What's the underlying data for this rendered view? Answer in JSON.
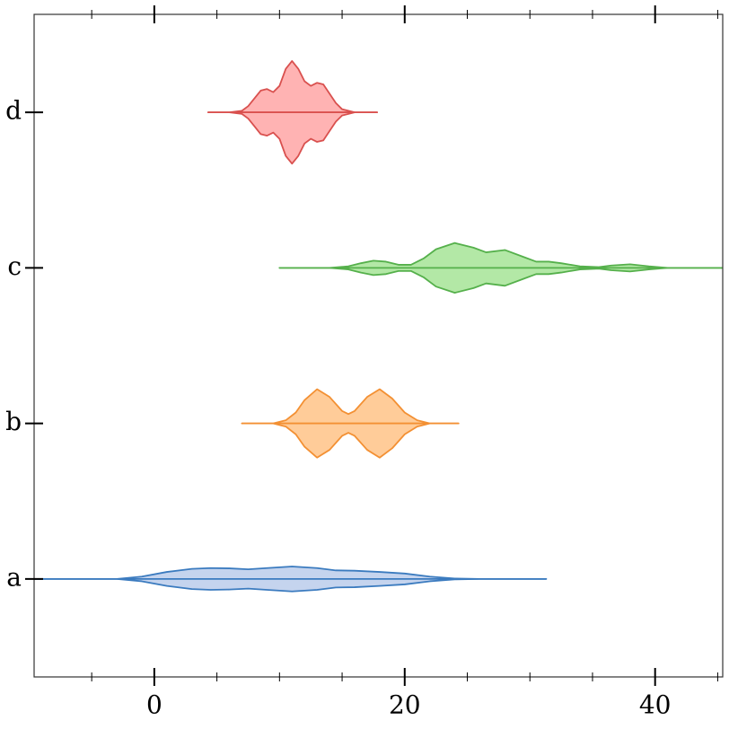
{
  "chart_data": {
    "type": "violin",
    "orientation": "horizontal",
    "categories": [
      "a",
      "b",
      "c",
      "d"
    ],
    "xlim": [
      -9.6,
      45.4
    ],
    "xticks": [
      0,
      20,
      40
    ],
    "xminorticks": [
      -5,
      5,
      10,
      15,
      25,
      30,
      35,
      45
    ],
    "ylim": [
      -0.63,
      3.63
    ],
    "series": [
      {
        "color": "#3b7bbf",
        "fill": "#c5d4ee",
        "x": [
          -9.6,
          -3,
          -1,
          1,
          3,
          4.5,
          6,
          7.5,
          9,
          11,
          13,
          14.5,
          16,
          18,
          20,
          22,
          24,
          26,
          31.3
        ],
        "values": [
          0,
          0,
          0.015,
          0.045,
          0.065,
          0.07,
          0.068,
          0.062,
          0.07,
          0.08,
          0.07,
          0.055,
          0.053,
          0.045,
          0.035,
          0.015,
          0.003,
          0,
          0
        ]
      },
      {
        "color": "#f39033",
        "fill": "#ffcc99",
        "x": [
          7,
          9.5,
          10.5,
          11.3,
          12,
          13,
          14,
          15,
          15.5,
          16,
          17,
          18,
          19,
          20,
          21,
          22,
          24.3
        ],
        "values": [
          0,
          0,
          0.02,
          0.07,
          0.15,
          0.22,
          0.17,
          0.08,
          0.06,
          0.08,
          0.17,
          0.22,
          0.16,
          0.07,
          0.02,
          0,
          0
        ]
      },
      {
        "color": "#55b04b",
        "fill": "#b3e8a6",
        "x": [
          10,
          14,
          15.5,
          16.5,
          17.5,
          18.5,
          19.5,
          20.5,
          21.5,
          22.5,
          24,
          25.5,
          26.5,
          28,
          29.5,
          30.5,
          31.5,
          32.5,
          34,
          35.5,
          36.5,
          38,
          39.5,
          41,
          45.4
        ],
        "values": [
          0,
          0,
          0.01,
          0.03,
          0.046,
          0.04,
          0.02,
          0.02,
          0.06,
          0.12,
          0.16,
          0.13,
          0.1,
          0.115,
          0.07,
          0.04,
          0.04,
          0.03,
          0.01,
          0.005,
          0.015,
          0.023,
          0.01,
          0,
          0
        ]
      },
      {
        "color": "#d9504e",
        "fill": "#ffb3b3",
        "x": [
          4.3,
          6,
          7,
          7.5,
          8,
          8.5,
          9,
          9.5,
          10,
          10.5,
          11,
          11.5,
          12,
          12.5,
          13,
          13.5,
          14,
          14.5,
          15,
          16,
          17.8
        ],
        "values": [
          0,
          0,
          0.01,
          0.04,
          0.09,
          0.14,
          0.15,
          0.13,
          0.17,
          0.28,
          0.33,
          0.28,
          0.2,
          0.17,
          0.19,
          0.18,
          0.12,
          0.06,
          0.02,
          0,
          0
        ]
      }
    ]
  }
}
